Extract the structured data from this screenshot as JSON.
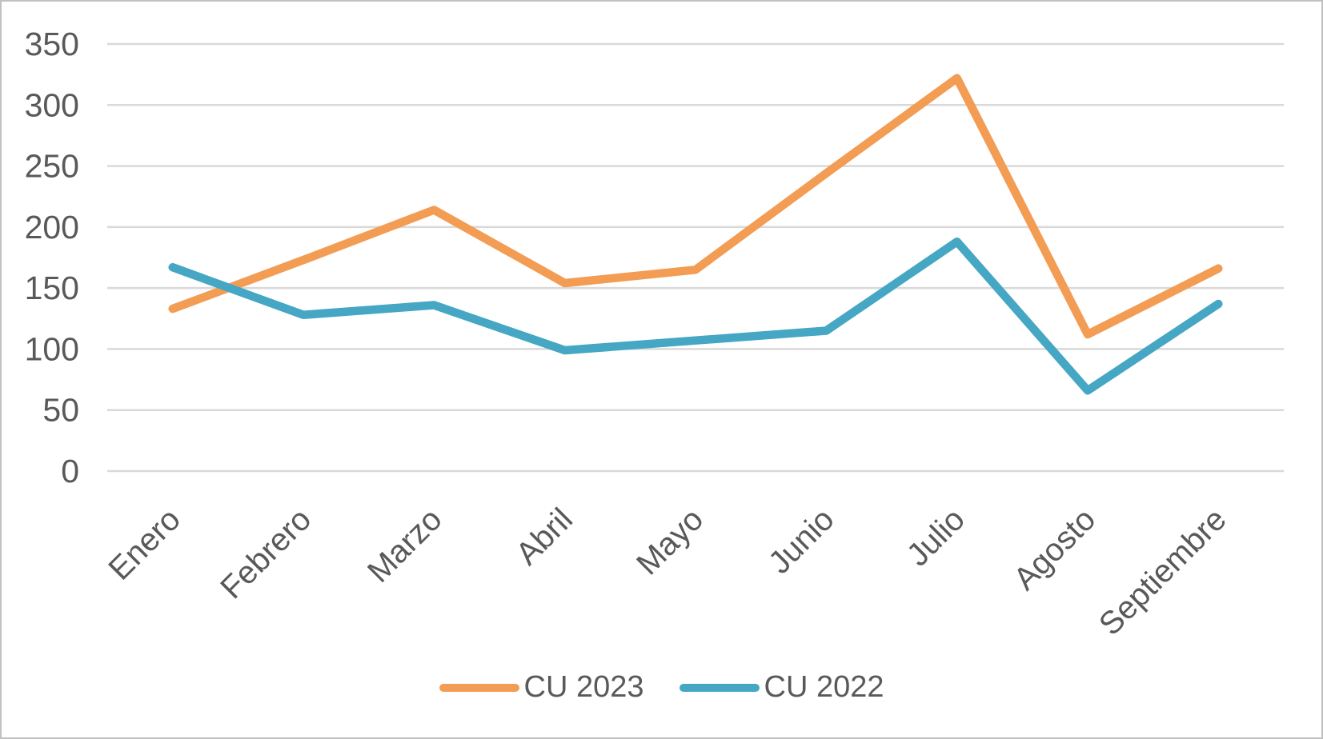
{
  "chart_data": {
    "type": "line",
    "title": "",
    "xlabel": "",
    "ylabel": "",
    "categories": [
      "Enero",
      "Febrero",
      "Marzo",
      "Abril",
      "Mayo",
      "Junio",
      "Julio",
      "Agosto",
      "Septiembre"
    ],
    "series": [
      {
        "name": "CU 2023",
        "color": "#F39C54",
        "values": [
          133,
          173,
          214,
          154,
          165,
          244,
          322,
          112,
          166
        ]
      },
      {
        "name": "CU 2022",
        "color": "#45A7C3",
        "values": [
          167,
          128,
          136,
          99,
          107,
          115,
          188,
          66,
          137
        ]
      }
    ],
    "yticks": [
      0,
      50,
      100,
      150,
      200,
      250,
      300,
      350
    ],
    "ylim": [
      0,
      350
    ],
    "grid": "horizontal",
    "legend_position": "bottom-center",
    "x_tick_rotation_deg": 45
  },
  "colors": {
    "axis_text": "#595959",
    "gridline": "#D9D9D9",
    "frame_border": "#C1C1C1",
    "background": "#FFFFFF"
  }
}
